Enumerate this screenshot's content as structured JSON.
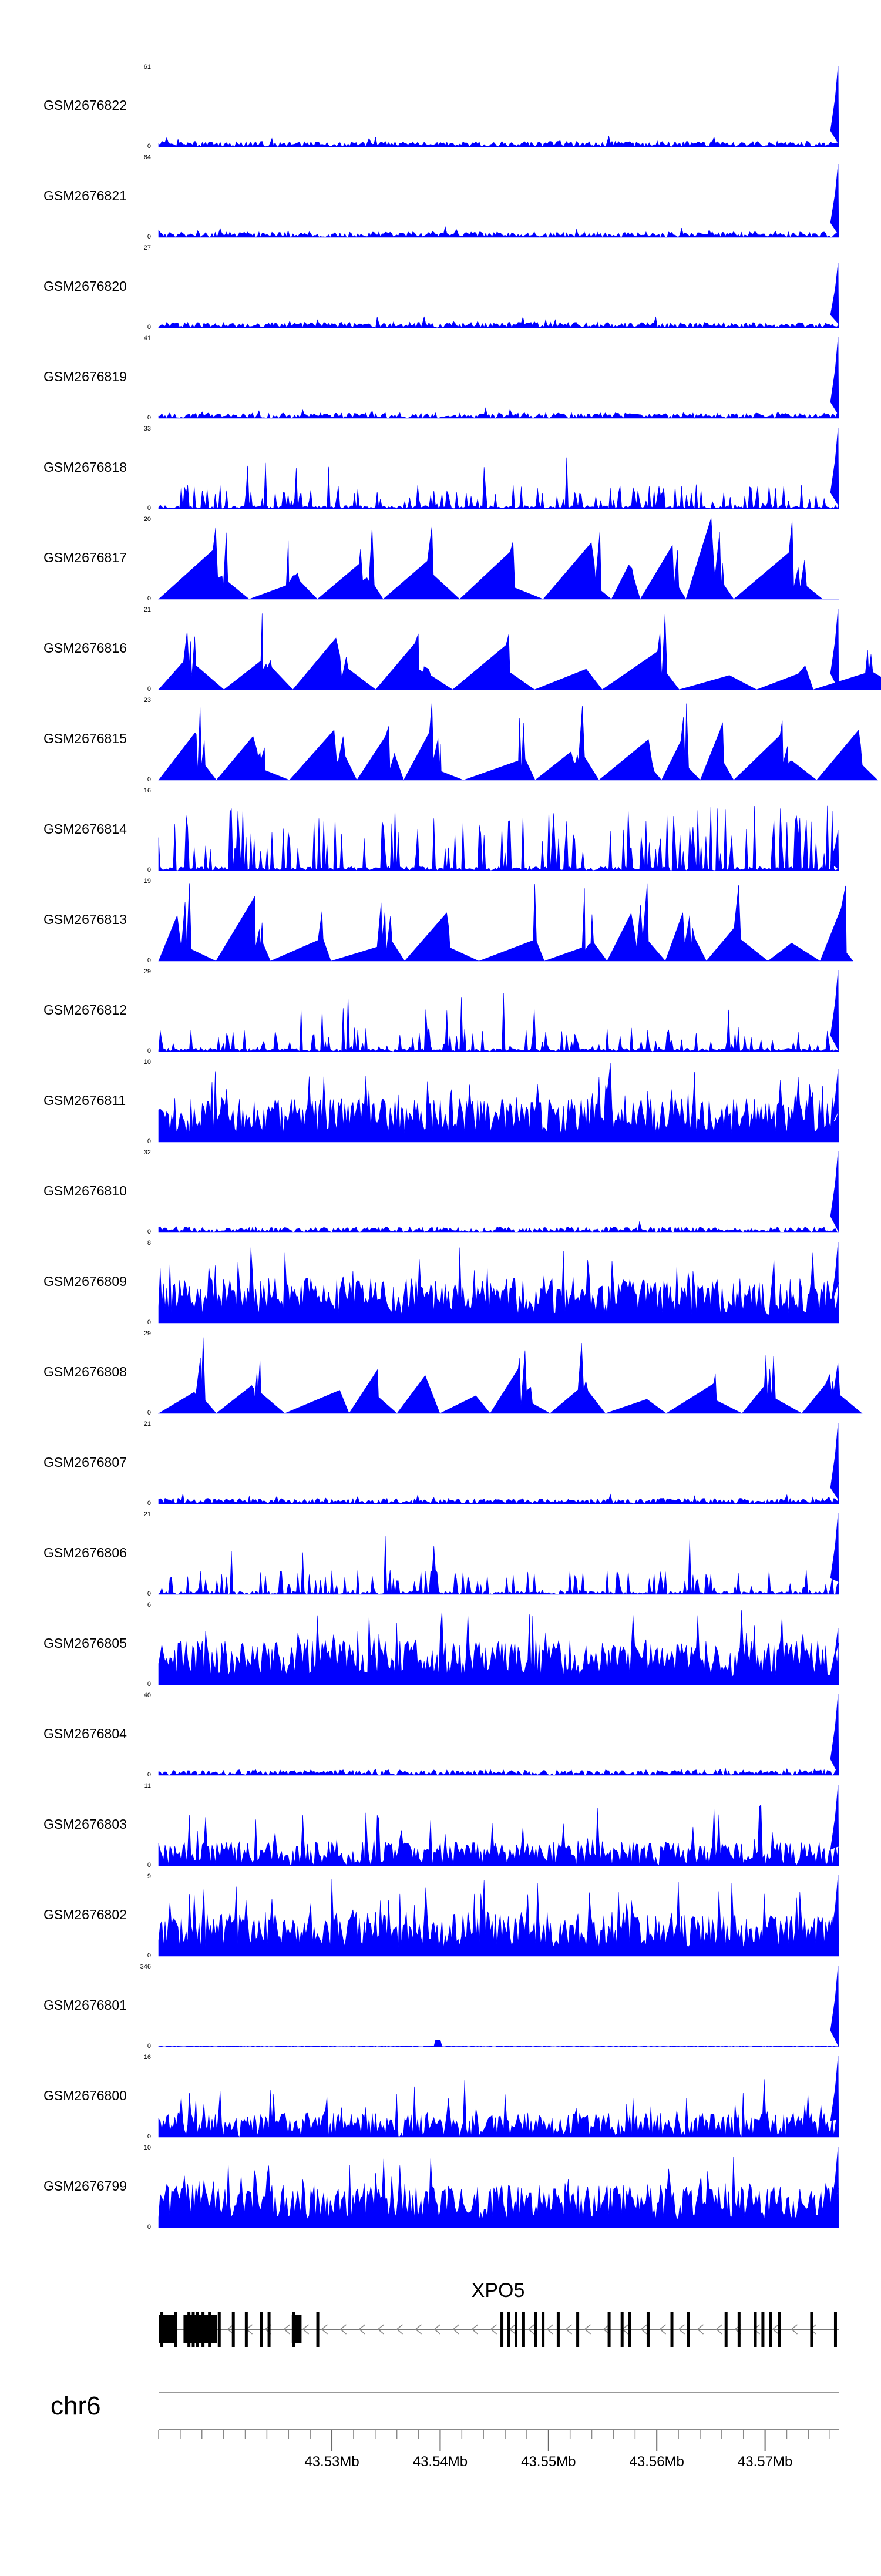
{
  "chart_data": {
    "type": "area",
    "note_style": "genome browser coverage tracks",
    "fill_color": "#0000ff",
    "tracks": [
      {
        "name": "GSM2676822",
        "ymax": "61",
        "ymin": "0",
        "style": "dense_low",
        "seed": 11,
        "end_spike": 1.0
      },
      {
        "name": "GSM2676821",
        "ymax": "64",
        "ymin": "0",
        "style": "dense_low",
        "seed": 12,
        "end_spike": 0.9
      },
      {
        "name": "GSM2676820",
        "ymax": "27",
        "ymin": "0",
        "style": "dense_low",
        "seed": 13,
        "end_spike": 0.8
      },
      {
        "name": "GSM2676819",
        "ymax": "41",
        "ymin": "0",
        "style": "dense_low",
        "seed": 14,
        "end_spike": 1.0
      },
      {
        "name": "GSM2676818",
        "ymax": "33",
        "ymin": "0",
        "style": "sparse_mid",
        "seed": 15,
        "end_spike": 1.0
      },
      {
        "name": "GSM2676817",
        "ymax": "20",
        "ymin": "0",
        "style": "triangles",
        "seed": 16,
        "end_spike": 0.0
      },
      {
        "name": "GSM2676816",
        "ymax": "21",
        "ymin": "0",
        "style": "triangles",
        "seed": 17,
        "end_spike": 1.0
      },
      {
        "name": "GSM2676815",
        "ymax": "23",
        "ymin": "0",
        "style": "triangles",
        "seed": 18,
        "end_spike": 0.0
      },
      {
        "name": "GSM2676814",
        "ymax": "16",
        "ymin": "0",
        "style": "peaks",
        "seed": 19,
        "end_spike": 0.5
      },
      {
        "name": "GSM2676813",
        "ymax": "19",
        "ymin": "0",
        "style": "triangles",
        "seed": 20,
        "end_spike": 0.3
      },
      {
        "name": "GSM2676812",
        "ymax": "29",
        "ymin": "0",
        "style": "sparse_mid",
        "seed": 21,
        "end_spike": 1.0
      },
      {
        "name": "GSM2676811",
        "ymax": "10",
        "ymin": "0",
        "style": "dense_high",
        "seed": 22,
        "end_spike": 0.9
      },
      {
        "name": "GSM2676810",
        "ymax": "32",
        "ymin": "0",
        "style": "dense_low",
        "seed": 23,
        "end_spike": 1.0
      },
      {
        "name": "GSM2676809",
        "ymax": "8",
        "ymin": "0",
        "style": "dense_high",
        "seed": 24,
        "end_spike": 1.0
      },
      {
        "name": "GSM2676808",
        "ymax": "29",
        "ymin": "0",
        "style": "triangles",
        "seed": 25,
        "end_spike": 0.3
      },
      {
        "name": "GSM2676807",
        "ymax": "21",
        "ymin": "0",
        "style": "dense_low",
        "seed": 26,
        "end_spike": 1.0
      },
      {
        "name": "GSM2676806",
        "ymax": "21",
        "ymin": "0",
        "style": "sparse_mid",
        "seed": 27,
        "end_spike": 1.0
      },
      {
        "name": "GSM2676805",
        "ymax": "6",
        "ymin": "0",
        "style": "dense_high",
        "seed": 28,
        "end_spike": 0.7
      },
      {
        "name": "GSM2676804",
        "ymax": "40",
        "ymin": "0",
        "style": "dense_low",
        "seed": 29,
        "end_spike": 1.0
      },
      {
        "name": "GSM2676803",
        "ymax": "11",
        "ymin": "0",
        "style": "dense_mid",
        "seed": 30,
        "end_spike": 1.0
      },
      {
        "name": "GSM2676802",
        "ymax": "9",
        "ymin": "0",
        "style": "dense_high",
        "seed": 31,
        "end_spike": 1.0
      },
      {
        "name": "GSM2676801",
        "ymax": "346",
        "ymin": "0",
        "style": "flat",
        "seed": 32,
        "end_spike": 1.0
      },
      {
        "name": "GSM2676800",
        "ymax": "16",
        "ymin": "0",
        "style": "dense_mid",
        "seed": 33,
        "end_spike": 1.0
      },
      {
        "name": "GSM2676799",
        "ymax": "10",
        "ymin": "0",
        "style": "dense_high",
        "seed": 34,
        "end_spike": 1.0
      }
    ],
    "gene": {
      "name": "XPO5",
      "strand": "-",
      "exons_mb": [
        43.5143,
        43.5156,
        43.5168,
        43.5172,
        43.5176,
        43.5181,
        43.5187,
        43.5196,
        43.5209,
        43.5221,
        43.5235,
        43.5242,
        43.5265,
        43.5287,
        43.5457,
        43.5463,
        43.547,
        43.5477,
        43.5488,
        43.5495,
        43.5509,
        43.5527,
        43.5556,
        43.5568,
        43.5575,
        43.5592,
        43.5614,
        43.5629,
        43.5664,
        43.5676,
        43.5691,
        43.5698,
        43.5705,
        43.5713,
        43.5743,
        43.5765
      ],
      "exon_blocks_mb": [
        [
          43.514,
          43.5156
        ],
        [
          43.5163,
          43.5194
        ],
        [
          43.5263,
          43.5272
        ]
      ]
    },
    "chromosome": "chr6",
    "axis": {
      "xmin_mb": 43.514,
      "xmax_mb": 43.5768,
      "major_ticks_mb": [
        43.53,
        43.54,
        43.55,
        43.56,
        43.57
      ],
      "major_tick_labels": [
        "43.53Mb",
        "43.54Mb",
        "43.55Mb",
        "43.56Mb",
        "43.57Mb"
      ],
      "minor_tick_step_mb": 0.002
    }
  }
}
